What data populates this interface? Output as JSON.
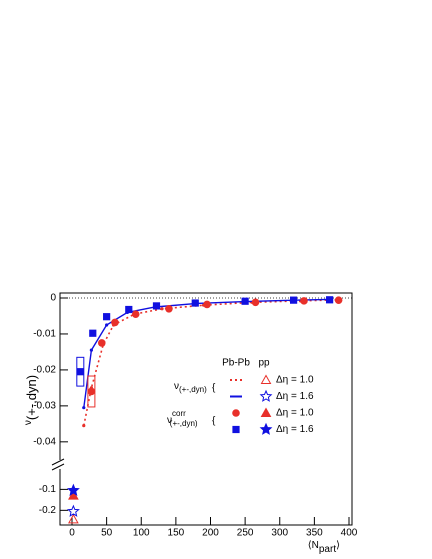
{
  "chart_data": [
    {
      "type": "line",
      "y_label": {
        "symbol": "ν",
        "sub": "(+-,dyn)"
      },
      "xlim": [
        0,
        400
      ],
      "ylim": [
        -0.047,
        0.0015
      ],
      "yticks": [
        0,
        -0.01,
        -0.02,
        -0.03,
        -0.04
      ],
      "zero_line": true,
      "legend_header": [
        "Pb-Pb",
        "pp"
      ],
      "legend_groups": [
        {
          "symbol": "ν",
          "sub": "(+-,dyn)"
        },
        {
          "symbol": "ν",
          "sup": "corr",
          "sub": "(+-,dyn)"
        }
      ],
      "series": [
        {
          "name": "Δη = 1.0",
          "color": "#e8302a",
          "line": "dotted",
          "marker": "dot",
          "x": [
            17,
            28,
            45,
            60,
            90,
            130,
            190,
            260,
            330,
            385
          ],
          "values": [
            -0.0355,
            -0.025,
            -0.013,
            -0.0075,
            -0.0045,
            -0.003,
            -0.002,
            -0.0012,
            -0.0008,
            -0.0005
          ]
        },
        {
          "name": "Δη = 1.6",
          "color": "#1010e0",
          "line": "solid",
          "marker": "dot",
          "x": [
            17,
            28,
            50,
            80,
            120,
            180,
            250,
            320,
            370
          ],
          "values": [
            -0.0305,
            -0.0145,
            -0.0075,
            -0.004,
            -0.0025,
            -0.0015,
            -0.001,
            -0.0006,
            -0.0004
          ]
        },
        {
          "name": "Δη = 1.0",
          "color": "#e8302a",
          "marker": "circle",
          "x": [
            28,
            43,
            62,
            92,
            140,
            195,
            265,
            335,
            385
          ],
          "values": [
            -0.026,
            -0.0125,
            -0.0068,
            -0.0045,
            -0.003,
            -0.0018,
            -0.0012,
            -0.0008,
            -0.0006
          ],
          "syst": [
            0.0043,
            null,
            null,
            null,
            null,
            null,
            null,
            null,
            null
          ]
        },
        {
          "name": "Δη = 1.6",
          "color": "#1010e0",
          "marker": "square",
          "x": [
            12,
            30,
            50,
            82,
            122,
            178,
            250,
            320,
            372
          ],
          "values": [
            -0.0205,
            -0.0098,
            -0.0052,
            -0.0032,
            -0.0022,
            -0.0014,
            -0.0009,
            -0.0006,
            -0.0005
          ],
          "syst": [
            0.004,
            null,
            null,
            null,
            null,
            null,
            null,
            null,
            null
          ]
        }
      ]
    },
    {
      "type": "scatter",
      "x_label": {
        "open": "⟨N",
        "sub": "part",
        "close": "⟩"
      },
      "xlim": [
        0,
        400
      ],
      "ylim": [
        -0.27,
        -0.06
      ],
      "xticks": [
        0,
        50,
        100,
        150,
        200,
        250,
        300,
        350,
        400
      ],
      "yticks": [
        -0.1,
        -0.2
      ],
      "series": [
        {
          "color": "#e8302a",
          "marker": "triangle-open",
          "x": [
            2
          ],
          "values": [
            -0.243
          ]
        },
        {
          "color": "#1010e0",
          "marker": "star-open",
          "x": [
            2
          ],
          "values": [
            -0.205
          ]
        },
        {
          "color": "#e8302a",
          "marker": "triangle",
          "x": [
            2
          ],
          "values": [
            -0.13
          ]
        },
        {
          "color": "#1010e0",
          "marker": "star",
          "x": [
            2
          ],
          "values": [
            -0.105
          ]
        }
      ]
    }
  ]
}
